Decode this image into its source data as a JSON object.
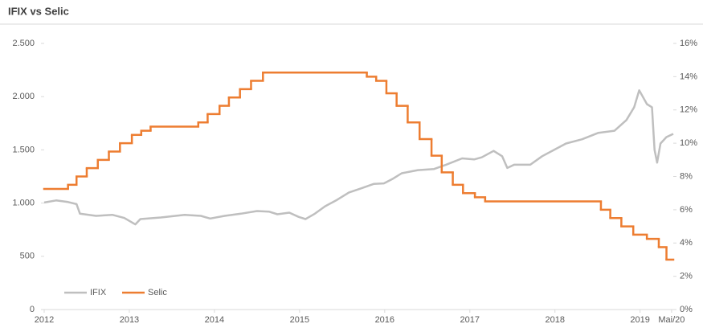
{
  "chart_data": {
    "type": "line",
    "title": "IFIX vs Selic",
    "xlim": [
      2012,
      2019.39
    ],
    "xticks": [
      2012,
      2013,
      2014,
      2015,
      2016,
      2017,
      2018,
      2019,
      {
        "value": 2019.37,
        "label": "Mai/20"
      }
    ],
    "ylim": [
      0,
      2500
    ],
    "yticks": [
      0,
      500,
      {
        "value": 1000,
        "label": "1.000"
      },
      {
        "value": 1500,
        "label": "1.500"
      },
      {
        "value": 2000,
        "label": "2.000"
      },
      {
        "value": 2500,
        "label": "2.500"
      }
    ],
    "y2lim": [
      0,
      16
    ],
    "y2ticks": [
      {
        "value": 0,
        "label": "0%"
      },
      {
        "value": 2,
        "label": "2%"
      },
      {
        "value": 4,
        "label": "4%"
      },
      {
        "value": 6,
        "label": "6%"
      },
      {
        "value": 8,
        "label": "8%"
      },
      {
        "value": 10,
        "label": "10%"
      },
      {
        "value": 12,
        "label": "12%"
      },
      {
        "value": 14,
        "label": "14%"
      },
      {
        "value": 16,
        "label": "16%"
      }
    ],
    "grid": false,
    "legend": "lower left",
    "series": [
      {
        "name": "IFIX",
        "color": "#bfbfbf",
        "x": [
          2012.0,
          2012.14,
          2012.28,
          2012.38,
          2012.42,
          2012.61,
          2012.8,
          2012.94,
          2013.07,
          2013.13,
          2013.37,
          2013.65,
          2013.84,
          2013.95,
          2014.12,
          2014.31,
          2014.5,
          2014.64,
          2014.74,
          2014.88,
          2014.99,
          2015.07,
          2015.18,
          2015.3,
          2015.44,
          2015.58,
          2015.73,
          2015.87,
          2015.99,
          2016.1,
          2016.2,
          2016.39,
          2016.58,
          2016.72,
          2016.91,
          2017.05,
          2017.14,
          2017.28,
          2017.38,
          2017.44,
          2017.52,
          2017.71,
          2017.85,
          2017.99,
          2018.13,
          2018.32,
          2018.51,
          2018.7,
          2018.84,
          2018.93,
          2018.99,
          2019.08,
          2019.14,
          2019.17,
          2019.2,
          2019.24,
          2019.31,
          2019.39
        ],
        "values": [
          1005,
          1025,
          1010,
          990,
          900,
          880,
          890,
          860,
          800,
          850,
          865,
          890,
          880,
          855,
          880,
          900,
          925,
          920,
          895,
          910,
          870,
          850,
          900,
          970,
          1030,
          1100,
          1140,
          1180,
          1185,
          1230,
          1280,
          1310,
          1320,
          1360,
          1420,
          1410,
          1430,
          1490,
          1440,
          1330,
          1360,
          1360,
          1440,
          1500,
          1560,
          1600,
          1660,
          1680,
          1780,
          1900,
          2060,
          1930,
          1900,
          1500,
          1380,
          1560,
          1620,
          1650
        ]
      },
      {
        "name": "Selic",
        "color": "#ed7d31",
        "axis": "y2",
        "step": "post",
        "x": [
          2012.0,
          2012.28,
          2012.38,
          2012.5,
          2012.63,
          2012.76,
          2012.89,
          2013.03,
          2013.14,
          2013.25,
          2013.81,
          2013.92,
          2014.06,
          2014.17,
          2014.3,
          2014.43,
          2014.57,
          2015.79,
          2015.9,
          2016.02,
          2016.14,
          2016.27,
          2016.41,
          2016.55,
          2016.67,
          2016.8,
          2016.92,
          2017.06,
          2017.18,
          2018.54,
          2018.65,
          2018.78,
          2018.92,
          2019.08,
          2019.22,
          2019.31
        ],
        "values": [
          7.25,
          7.5,
          8,
          8.5,
          9,
          9.5,
          10,
          10.5,
          10.75,
          11,
          11.25,
          11.75,
          12.25,
          12.75,
          13.25,
          13.75,
          14.25,
          14,
          13.75,
          13,
          12.25,
          11.25,
          10.25,
          9.25,
          8.25,
          7.5,
          7,
          6.75,
          6.5,
          6,
          5.5,
          5,
          4.5,
          4.25,
          3.75,
          3
        ]
      }
    ]
  }
}
